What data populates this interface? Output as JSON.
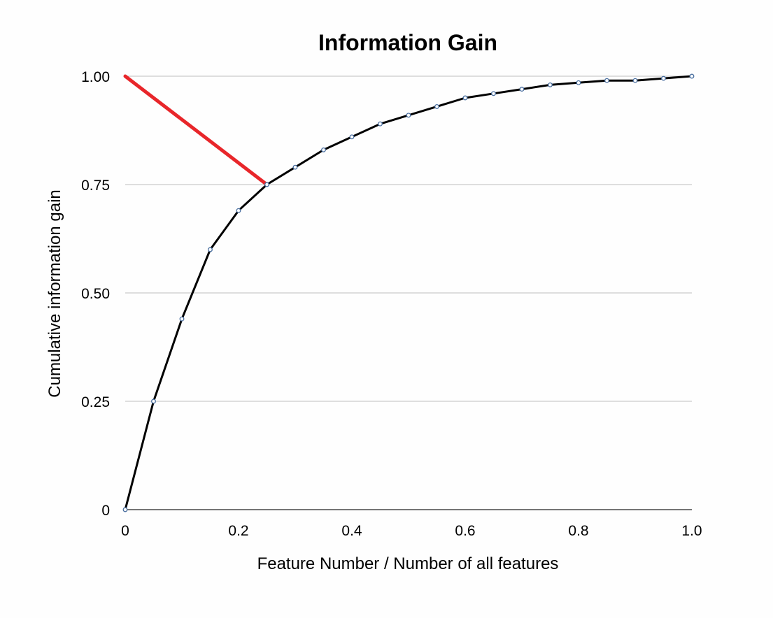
{
  "chart_data": {
    "type": "line",
    "title": "Information Gain",
    "xlabel": "Feature Number / Number of all features",
    "ylabel": "Cumulative information gain",
    "xlim": [
      0,
      1.0
    ],
    "ylim": [
      0,
      1.0
    ],
    "x_ticks": [
      0,
      0.2,
      0.4,
      0.6,
      0.8,
      1.0
    ],
    "x_tick_labels": [
      "0",
      "0.2",
      "0.4",
      "0.6",
      "0.8",
      "1.0"
    ],
    "y_ticks": [
      0,
      0.25,
      0.5,
      0.75,
      1.0
    ],
    "y_tick_labels": [
      "0",
      "0.25",
      "0.50",
      "0.75",
      "1.00"
    ],
    "grid": "horizontal",
    "series": [
      {
        "color": "#000000",
        "marker_color": "#4a6fa0",
        "x": [
          0,
          0.05,
          0.1,
          0.15,
          0.2,
          0.25,
          0.3,
          0.35,
          0.4,
          0.45,
          0.5,
          0.55,
          0.6,
          0.65,
          0.7,
          0.75,
          0.8,
          0.85,
          0.9,
          0.95,
          1.0
        ],
        "y": [
          0,
          0.25,
          0.44,
          0.6,
          0.69,
          0.75,
          0.79,
          0.83,
          0.86,
          0.89,
          0.91,
          0.93,
          0.95,
          0.96,
          0.97,
          0.98,
          0.985,
          0.99,
          0.99,
          0.995,
          1.0
        ]
      }
    ],
    "annotations": [
      {
        "type": "segment",
        "color": "#e8262a",
        "from": [
          0,
          1.0
        ],
        "to": [
          0.25,
          0.75
        ]
      }
    ]
  }
}
